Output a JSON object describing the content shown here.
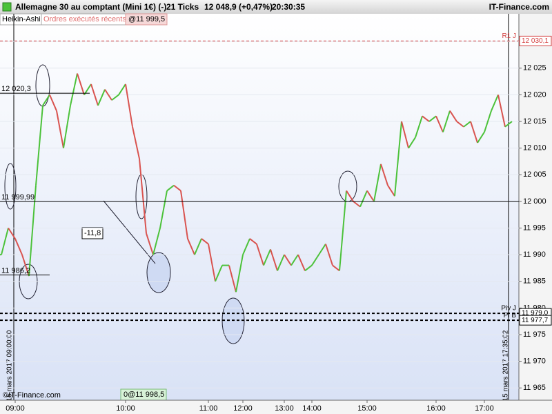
{
  "title_bar": {
    "instrument": "Allemagne 30 au comptant (Mini 1€) (-)",
    "interval": "21 Ticks",
    "last": "12 048,9 (+0,47%)",
    "time": "20:30:35",
    "brand": "IT-Finance.com"
  },
  "tabs": {
    "chart_style": "Heikin-Ashi",
    "orders": "Ordres exécutés récents",
    "order_top": "@11 999,5",
    "order_bottom": "0@11 998,5"
  },
  "chart_data": {
    "type": "line",
    "categories": [
      null,
      null,
      "09:00",
      null,
      null,
      null,
      null,
      null,
      null,
      null,
      null,
      null,
      null,
      null,
      null,
      null,
      null,
      null,
      "10:00",
      null,
      null,
      null,
      null,
      null,
      null,
      null,
      null,
      null,
      null,
      null,
      "11:00",
      null,
      null,
      null,
      null,
      "12:00",
      null,
      null,
      null,
      null,
      null,
      "13:00",
      null,
      null,
      null,
      "14:00",
      null,
      null,
      null,
      null,
      null,
      null,
      null,
      "15:00",
      null,
      null,
      null,
      null,
      null,
      null,
      null,
      null,
      null,
      "16:00",
      null,
      null,
      null,
      null,
      null,
      null,
      "17:00",
      null,
      null,
      null,
      null
    ],
    "values": [
      11990,
      11995,
      11993,
      11990,
      11986,
      12003,
      12018,
      12020,
      12017,
      12010,
      12018,
      12024,
      12020,
      12022,
      12018,
      12021,
      12019,
      12020,
      12022,
      12014,
      12008,
      11994,
      11990,
      11995,
      12002,
      12003,
      12002,
      11993,
      11990,
      11993,
      11992,
      11985,
      11988,
      11988,
      11983,
      11990,
      11993,
      11992,
      11988,
      11991,
      11987,
      11990,
      11988,
      11990,
      11987,
      11988,
      11990,
      11992,
      11988,
      11987,
      12002,
      12000,
      11999,
      12002,
      12000,
      12007,
      12003,
      12001,
      12015,
      12010,
      12012,
      12016,
      12015,
      12016,
      12013,
      12017,
      12015,
      12014,
      12015,
      12011,
      12013,
      12017,
      12020,
      12014,
      12015
    ],
    "up_color": "#4cc23a",
    "down_color": "#d9534f",
    "ylim": [
      11962.7,
      12035.2
    ],
    "yticks": [
      {
        "value": 11965,
        "label": "11 965"
      },
      {
        "value": 11970,
        "label": "11 970"
      },
      {
        "value": 11975,
        "label": "11 975"
      },
      {
        "value": 11980,
        "label": "11 980"
      },
      {
        "value": 11985,
        "label": "11 985"
      },
      {
        "value": 11990,
        "label": "11 990"
      },
      {
        "value": 11995,
        "label": "11 995"
      },
      {
        "value": 12000,
        "label": "12 000"
      },
      {
        "value": 12005,
        "label": "12 005"
      },
      {
        "value": 12010,
        "label": "12 010"
      },
      {
        "value": 12015,
        "label": "12 015"
      },
      {
        "value": 12020,
        "label": "12 020"
      },
      {
        "value": 12025,
        "label": "12 025"
      },
      {
        "value": 12030,
        "label": "12 030"
      }
    ],
    "left_levels": [
      {
        "value": 12020.3,
        "label": "12 020,3",
        "extent": "short"
      },
      {
        "value": 11999.99,
        "label": "11 999,99",
        "extent": "full"
      },
      {
        "value": 11986.2,
        "label": "11 986,2",
        "extent": "short"
      }
    ],
    "right_levels": [
      {
        "name": "R1 J",
        "value": 12030.1,
        "label": "12 030,1",
        "color": "#d33c3c"
      },
      {
        "name": "Piv J",
        "value": 11979.0,
        "label": "11 979,0",
        "color": "#000000"
      },
      {
        "name": "Pi B",
        "value": 11977.7,
        "label": "11 977,7",
        "color": "#000000"
      }
    ],
    "annotation": "-11,8",
    "date_labels": [
      "15 mars 2017 09:00:00",
      "15 mars 2017 17:35:02"
    ],
    "watermark": "©IT-Finance.com"
  }
}
